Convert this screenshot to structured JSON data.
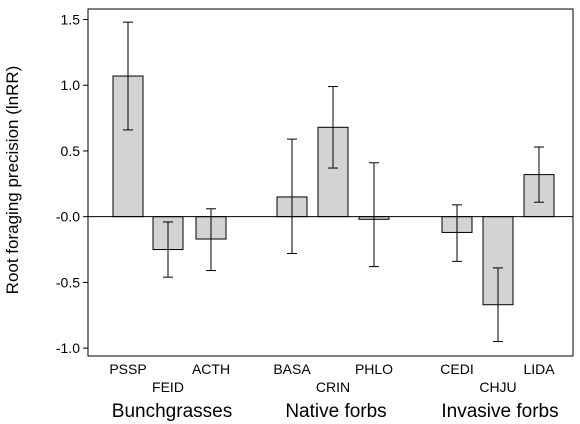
{
  "chart_data": {
    "type": "bar",
    "ylabel": "Root foraging precision (lnRR)",
    "ylim": [
      -1.06,
      1.58
    ],
    "yticks": [
      {
        "value": 1.5,
        "label": "1.5"
      },
      {
        "value": 1.0,
        "label": "1.0"
      },
      {
        "value": 0.5,
        "label": "0.5"
      },
      {
        "value": 0.0,
        "label": "-0.0"
      },
      {
        "value": -0.5,
        "label": "-0.5"
      },
      {
        "value": -1.0,
        "label": "-1.0"
      }
    ],
    "categories": [
      "PSSP",
      "FEID",
      "ACTH",
      "BASA",
      "CRIN",
      "PHLO",
      "CEDI",
      "CHJU",
      "LIDA"
    ],
    "values": [
      1.07,
      -0.25,
      -0.17,
      0.15,
      0.68,
      -0.02,
      -0.12,
      -0.67,
      0.32
    ],
    "error_upper": [
      1.48,
      -0.04,
      0.06,
      0.59,
      0.99,
      0.41,
      0.09,
      -0.39,
      0.53
    ],
    "error_lower": [
      0.66,
      -0.46,
      -0.41,
      -0.28,
      0.37,
      -0.38,
      -0.34,
      -0.95,
      0.11
    ],
    "groups": [
      {
        "name": "Bunchgrasses",
        "members": [
          "PSSP",
          "FEID",
          "ACTH"
        ]
      },
      {
        "name": "Native forbs",
        "members": [
          "BASA",
          "CRIN",
          "PHLO"
        ]
      },
      {
        "name": "Invasive forbs",
        "members": [
          "CEDI",
          "CHJU",
          "LIDA"
        ]
      }
    ],
    "colors": {
      "bar_fill": "#d3d3d3",
      "bar_stroke": "#000000",
      "axis": "#000000"
    },
    "grid": false
  }
}
